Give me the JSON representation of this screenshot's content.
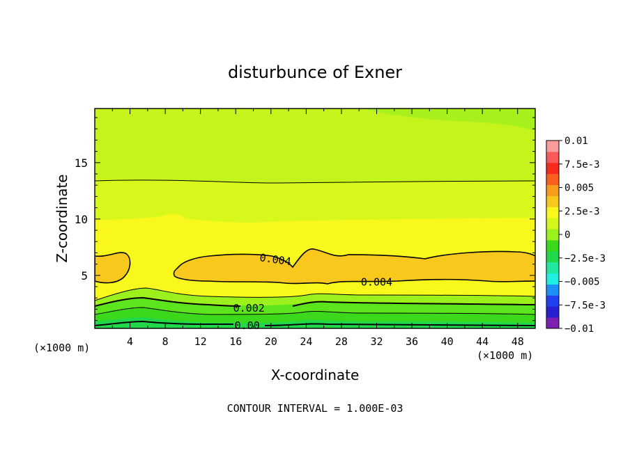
{
  "chart_data": {
    "type": "contour",
    "title": "disturbunce of Exner",
    "xlabel": "X-coordinate",
    "ylabel": "Z-coordinate",
    "x_unit": "(×1000 m)",
    "z_unit": "(×1000 m)",
    "footer": "CONTOUR INTERVAL = 1.000E-03",
    "xlim": [
      0,
      50
    ],
    "ylim": [
      0.3,
      19.8
    ],
    "x_ticks": [
      4,
      8,
      12,
      16,
      20,
      24,
      28,
      32,
      36,
      40,
      44,
      48
    ],
    "y_ticks": [
      5,
      10,
      15
    ],
    "colorbar": {
      "range": [
        -0.01,
        0.01
      ],
      "tick_labels": [
        "0.01",
        "7.5e-3",
        "0.005",
        "2.5e-3",
        "0",
        "−2.5e-3",
        "−0.005",
        "−7.5e-3",
        "−0.01"
      ],
      "tick_values": [
        0.01,
        0.0075,
        0.005,
        0.0025,
        0,
        -0.0025,
        -0.005,
        -0.0075,
        -0.01
      ],
      "colors": [
        "#7d1fb0",
        "#2a1fd0",
        "#1f3ff0",
        "#1f8ff8",
        "#1ff0e0",
        "#1fe8a0",
        "#21d84a",
        "#3cd81c",
        "#9cf01c",
        "#d4f81c",
        "#f8f81c",
        "#f8c81c",
        "#f89c1c",
        "#f8601c",
        "#f82a1c",
        "#f85a5a",
        "#f89c9c"
      ]
    },
    "contour_labels": [
      {
        "text": "0.004",
        "x": 20.5,
        "z": 6.4,
        "rotate": 8
      },
      {
        "text": "0.004",
        "x": 32,
        "z": 4.4,
        "rotate": 0
      },
      {
        "text": "0.002",
        "x": 17.5,
        "z": 2.1,
        "rotate": 0
      },
      {
        "text": "0.00",
        "x": 17.3,
        "z": 0.55,
        "rotate": 0
      }
    ],
    "regions": [
      {
        "level": 0.0025,
        "color": "#aef01c"
      },
      {
        "level": 0.003,
        "color": "#d4f81c"
      },
      {
        "level": 0.0035,
        "color": "#f8f81c"
      },
      {
        "level": 0.004,
        "color": "#f8c81c"
      }
    ]
  }
}
